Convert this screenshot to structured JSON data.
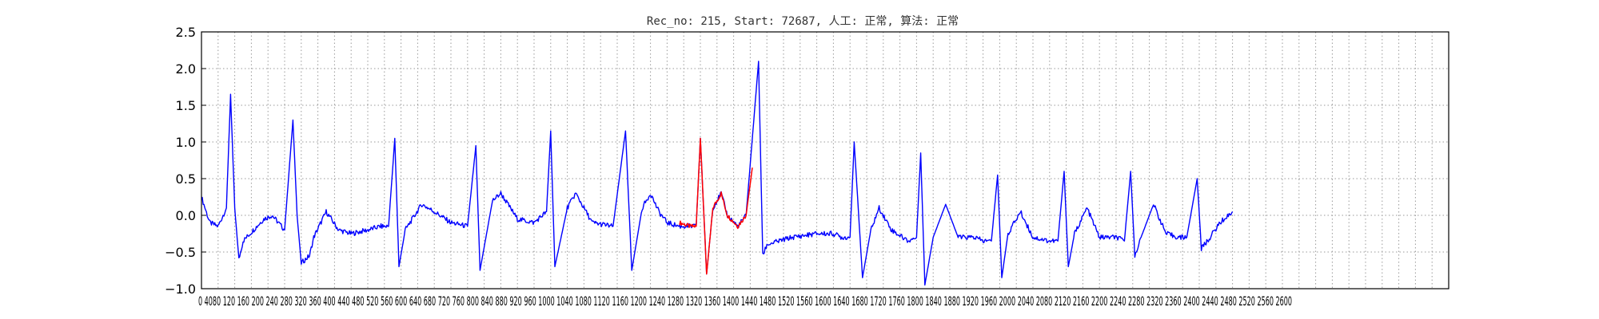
{
  "chart_data": {
    "type": "line",
    "title": "Rec_no: 215, Start: 72687, 人工: 正常, 算法: 正常",
    "xlabel": "",
    "ylabel": "",
    "xlim": [
      0,
      3000
    ],
    "ylim": [
      -1.0,
      2.5
    ],
    "grid": true,
    "grid_style": "dotted",
    "yticks": [
      2.5,
      2.0,
      1.5,
      1.0,
      0.5,
      0.0,
      -0.5,
      -1.0
    ],
    "ytick_labels": [
      "2.5",
      "2.0",
      "1.5",
      "1.0",
      "0.5",
      "0.0",
      "−0.5",
      "−1.0"
    ],
    "xtick_step": 40,
    "xtick_labels_text": "0 4080 120 160 200 240 280 320 360 400 440 480 520 560 600 640 680 720 760 800 840 880 920 960 1000 1040 1080 1120 1160 1200 1240 1280 1320 1360 1400 1440 1480 1520 1560 1600 1640 1680 1720 1760 1800 1840 1880 1920 1960 2000 2040 2080 2120 2160 2200 2240 2280 2320 2360 2400 2440 2480 2520 2560 2600",
    "colors": {
      "primary": "#0000ff",
      "highlight": "#ff0000",
      "grid": "#9a9a9a"
    },
    "baseline": [
      [
        0,
        0.25
      ],
      [
        20,
        -0.1
      ],
      [
        40,
        -0.15
      ],
      [
        60,
        0.1
      ],
      [
        70,
        1.65
      ],
      [
        80,
        0.1
      ],
      [
        90,
        -0.6
      ],
      [
        100,
        -0.35
      ],
      [
        150,
        -0.05
      ],
      [
        170,
        0.0
      ],
      [
        200,
        -0.2
      ],
      [
        220,
        1.3
      ],
      [
        230,
        0.0
      ],
      [
        240,
        -0.65
      ],
      [
        260,
        -0.55
      ],
      [
        270,
        -0.3
      ],
      [
        300,
        0.05
      ],
      [
        330,
        -0.2
      ],
      [
        360,
        -0.25
      ],
      [
        400,
        -0.2
      ],
      [
        430,
        -0.15
      ],
      [
        450,
        -0.15
      ],
      [
        465,
        1.05
      ],
      [
        475,
        -0.7
      ],
      [
        490,
        -0.2
      ],
      [
        530,
        0.15
      ],
      [
        560,
        0.05
      ],
      [
        600,
        -0.1
      ],
      [
        640,
        -0.15
      ],
      [
        660,
        0.95
      ],
      [
        670,
        -0.75
      ],
      [
        700,
        0.2
      ],
      [
        720,
        0.3
      ],
      [
        760,
        -0.05
      ],
      [
        800,
        -0.1
      ],
      [
        830,
        0.05
      ],
      [
        840,
        1.15
      ],
      [
        850,
        -0.7
      ],
      [
        880,
        0.1
      ],
      [
        900,
        0.3
      ],
      [
        940,
        -0.1
      ],
      [
        990,
        -0.15
      ],
      [
        1020,
        1.15
      ],
      [
        1035,
        -0.75
      ],
      [
        1060,
        0.1
      ],
      [
        1080,
        0.3
      ],
      [
        1100,
        0.05
      ],
      [
        1120,
        -0.1
      ],
      [
        1150,
        -0.15
      ],
      [
        1175,
        -0.15
      ],
      [
        1190,
        -0.15
      ],
      [
        1200,
        1.05
      ],
      [
        1215,
        -0.8
      ],
      [
        1230,
        0.1
      ],
      [
        1250,
        0.3
      ],
      [
        1265,
        0.0
      ],
      [
        1290,
        -0.15
      ],
      [
        1310,
        0.0
      ],
      [
        1340,
        2.1
      ],
      [
        1350,
        -0.55
      ],
      [
        1360,
        -0.4
      ],
      [
        1420,
        -0.3
      ],
      [
        1480,
        -0.25
      ],
      [
        1520,
        -0.25
      ],
      [
        1540,
        -0.3
      ],
      [
        1560,
        -0.3
      ],
      [
        1570,
        1.0
      ],
      [
        1590,
        -0.85
      ],
      [
        1610,
        -0.2
      ],
      [
        1630,
        0.1
      ],
      [
        1660,
        -0.2
      ],
      [
        1700,
        -0.35
      ],
      [
        1720,
        -0.3
      ],
      [
        1730,
        0.85
      ],
      [
        1740,
        -0.95
      ],
      [
        1760,
        -0.3
      ],
      [
        1790,
        0.15
      ],
      [
        1820,
        -0.3
      ],
      [
        1860,
        -0.3
      ],
      [
        1880,
        -0.35
      ],
      [
        1900,
        -0.35
      ],
      [
        1915,
        0.55
      ],
      [
        1925,
        -0.85
      ],
      [
        1940,
        -0.25
      ],
      [
        1970,
        0.05
      ],
      [
        2000,
        -0.3
      ],
      [
        2040,
        -0.35
      ],
      [
        2060,
        -0.35
      ],
      [
        2075,
        0.6
      ],
      [
        2085,
        -0.7
      ],
      [
        2100,
        -0.25
      ],
      [
        2130,
        0.1
      ],
      [
        2160,
        -0.3
      ],
      [
        2200,
        -0.3
      ],
      [
        2220,
        -0.35
      ],
      [
        2235,
        0.6
      ],
      [
        2245,
        -0.55
      ],
      [
        2260,
        -0.3
      ],
      [
        2290,
        0.15
      ],
      [
        2320,
        -0.25
      ],
      [
        2350,
        -0.3
      ],
      [
        2370,
        -0.3
      ],
      [
        2395,
        0.5
      ],
      [
        2405,
        -0.45
      ],
      [
        2420,
        -0.35
      ],
      [
        2450,
        -0.1
      ],
      [
        2480,
        0.05
      ]
    ],
    "highlight_segment": [
      [
        1150,
        -0.1
      ],
      [
        1175,
        -0.15
      ],
      [
        1190,
        -0.15
      ],
      [
        1200,
        1.05
      ],
      [
        1215,
        -0.8
      ],
      [
        1230,
        0.1
      ],
      [
        1250,
        0.3
      ],
      [
        1265,
        0.0
      ],
      [
        1290,
        -0.15
      ],
      [
        1310,
        0.0
      ],
      [
        1325,
        0.65
      ]
    ]
  }
}
